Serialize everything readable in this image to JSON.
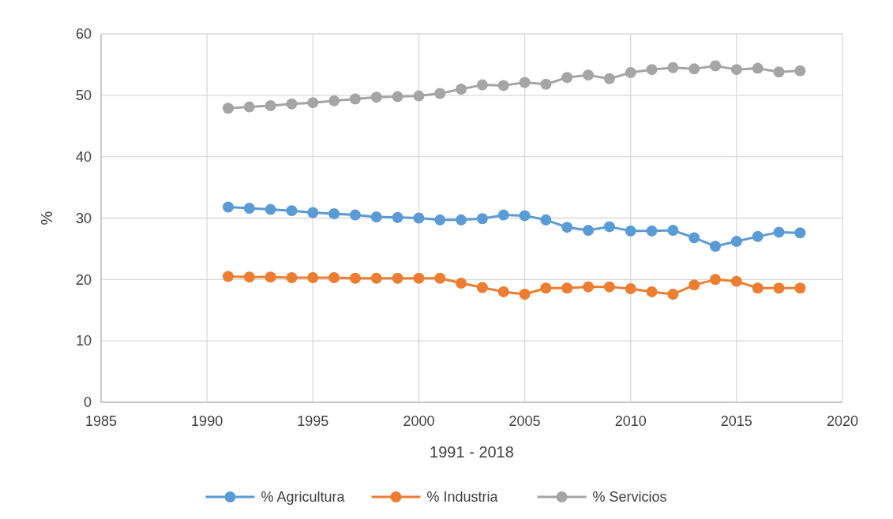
{
  "chart_data": {
    "type": "line",
    "xlabel": "1991 - 2018",
    "ylabel": "%",
    "x": [
      1991,
      1992,
      1993,
      1994,
      1995,
      1996,
      1997,
      1998,
      1999,
      2000,
      2001,
      2002,
      2003,
      2004,
      2005,
      2006,
      2007,
      2008,
      2009,
      2010,
      2011,
      2012,
      2013,
      2014,
      2015,
      2016,
      2017,
      2018
    ],
    "series": [
      {
        "name": "% Agricultura",
        "color": "#5b9bd5",
        "values": [
          31.8,
          31.6,
          31.4,
          31.2,
          30.9,
          30.7,
          30.5,
          30.2,
          30.1,
          30.0,
          29.7,
          29.7,
          29.9,
          30.5,
          30.4,
          29.7,
          28.5,
          28.0,
          28.6,
          27.9,
          27.9,
          28.0,
          26.8,
          25.4,
          26.2,
          27.0,
          27.7,
          27.6
        ]
      },
      {
        "name": "% Industria",
        "color": "#ed7d31",
        "values": [
          20.5,
          20.4,
          20.4,
          20.3,
          20.3,
          20.3,
          20.2,
          20.2,
          20.2,
          20.2,
          20.2,
          19.4,
          18.7,
          18.0,
          17.6,
          18.6,
          18.6,
          18.8,
          18.8,
          18.5,
          18.0,
          17.6,
          19.1,
          20.0,
          19.7,
          18.6,
          18.6,
          18.6
        ]
      },
      {
        "name": "% Servicios",
        "color": "#a5a5a5",
        "values": [
          47.9,
          48.1,
          48.3,
          48.6,
          48.8,
          49.1,
          49.4,
          49.7,
          49.8,
          49.9,
          50.3,
          51.0,
          51.7,
          51.6,
          52.1,
          51.8,
          52.9,
          53.3,
          52.7,
          53.7,
          54.2,
          54.5,
          54.3,
          54.8,
          54.2,
          54.4,
          53.8,
          54.0
        ]
      }
    ],
    "xlim": [
      1985,
      2020
    ],
    "xticks": [
      1985,
      1990,
      1995,
      2000,
      2005,
      2010,
      2015,
      2020
    ],
    "ylim": [
      0,
      60
    ],
    "yticks": [
      0,
      10,
      20,
      30,
      40,
      50,
      60
    ],
    "grid": true,
    "legend": "bottom",
    "marker": "circle",
    "line_style": "solid"
  }
}
